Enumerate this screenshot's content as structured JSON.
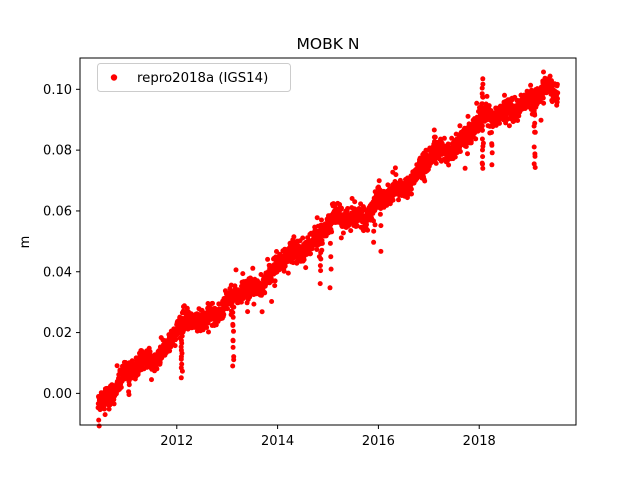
{
  "figure": {
    "background": "#ffffff",
    "frame_color": "#000000"
  },
  "chart_data": {
    "type": "scatter",
    "title": "MOBK N",
    "xlabel": "",
    "ylabel": "m",
    "grid": false,
    "legend_position": "upper left",
    "series": [
      {
        "name": "repro2018a (IGS14)",
        "color": "#ff0000",
        "marker": "dot"
      }
    ],
    "xlim": [
      2010.08,
      2019.92
    ],
    "ylim": [
      -0.0104,
      0.1103
    ],
    "xticks": [
      2012,
      2014,
      2016,
      2018
    ],
    "yticks": [
      0.0,
      0.02,
      0.04,
      0.06,
      0.08,
      0.1
    ],
    "ytick_decimals": 2,
    "x_data_range": [
      2010.44,
      2019.56
    ],
    "y_data_range": [
      -0.0055,
      0.1035
    ],
    "trend_anchors": [
      [
        2010.44,
        -0.0035
      ],
      [
        2010.7,
        0.001
      ],
      [
        2011.0,
        0.0065
      ],
      [
        2011.4,
        0.01
      ],
      [
        2011.75,
        0.0145
      ],
      [
        2012.0,
        0.0205
      ],
      [
        2012.3,
        0.0235
      ],
      [
        2012.7,
        0.0265
      ],
      [
        2013.0,
        0.0295
      ],
      [
        2013.4,
        0.0335
      ],
      [
        2013.8,
        0.038
      ],
      [
        2014.0,
        0.042
      ],
      [
        2014.4,
        0.0465
      ],
      [
        2014.8,
        0.052
      ],
      [
        2015.0,
        0.0555
      ],
      [
        2015.4,
        0.0575
      ],
      [
        2015.8,
        0.06
      ],
      [
        2016.0,
        0.0625
      ],
      [
        2016.4,
        0.0665
      ],
      [
        2016.8,
        0.0735
      ],
      [
        2017.0,
        0.077
      ],
      [
        2017.4,
        0.08
      ],
      [
        2017.8,
        0.0865
      ],
      [
        2018.0,
        0.0895
      ],
      [
        2018.3,
        0.0905
      ],
      [
        2018.6,
        0.0945
      ],
      [
        2018.9,
        0.0955
      ],
      [
        2019.1,
        0.096
      ],
      [
        2019.3,
        0.0995
      ],
      [
        2019.56,
        0.1005
      ]
    ],
    "wobble": [
      {
        "amp": 0.0012,
        "period": 1.0,
        "phase": 0.5
      },
      {
        "amp": 0.001,
        "period": 0.42,
        "phase": 2.0
      }
    ],
    "noise_sd": 0.0016,
    "heavy_tail_prob": 0.1,
    "heavy_tail_sd": 0.0025,
    "stray_below": {
      "rate": 0.013,
      "max_depth": 0.013
    },
    "stray_above": {
      "rate": 0.004,
      "max_height": 0.005
    },
    "outlier_events": [
      {
        "x": 2011.05,
        "min": -0.0005,
        "count": 5
      },
      {
        "x": 2012.1,
        "min": 0.0055,
        "count": 13
      },
      {
        "x": 2013.12,
        "min": 0.0085,
        "count": 12
      },
      {
        "x": 2014.85,
        "min": 0.0365,
        "count": 6
      },
      {
        "x": 2015.05,
        "min": 0.036,
        "count": 5
      },
      {
        "x": 2015.9,
        "min": 0.049,
        "count": 4
      },
      {
        "x": 2016.05,
        "min": 0.048,
        "count": 3
      },
      {
        "x": 2017.12,
        "max": 0.0865,
        "count": 7
      },
      {
        "x": 2018.07,
        "max": 0.1035,
        "count": 8
      },
      {
        "x": 2018.07,
        "min": 0.0735,
        "count": 11
      },
      {
        "x": 2018.25,
        "min": 0.0755,
        "count": 6
      },
      {
        "x": 2019.1,
        "min": 0.0735,
        "count": 11
      }
    ],
    "points_per_year": 290,
    "marker_radius_px": 2.5,
    "seed": 42,
    "legend_border_color": "#cccccc"
  }
}
